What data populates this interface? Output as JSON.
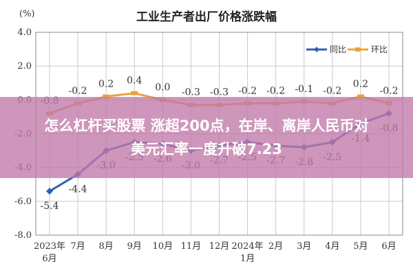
{
  "chart_data": {
    "type": "line",
    "title": "工业生产者出厂价格涨跌幅",
    "unit": "(%)",
    "ylim": [
      -8.0,
      4.0
    ],
    "yticks": [
      "4.0",
      "2.0",
      "0.0",
      "-2.0",
      "-4.0",
      "-6.0",
      "-8.0"
    ],
    "categories": [
      "2023年6月",
      "7月",
      "8月",
      "9月",
      "10月",
      "11月",
      "12月",
      "2024年1月",
      "2月",
      "3月",
      "4月",
      "5月",
      "6月"
    ],
    "x_tick_lines": [
      [
        "2023年",
        "6月"
      ],
      [
        "7月"
      ],
      [
        "8月"
      ],
      [
        "9月"
      ],
      [
        "10月"
      ],
      [
        "11月"
      ],
      [
        "12月"
      ],
      [
        "2024年",
        "1月"
      ],
      [
        "2月"
      ],
      [
        "3月"
      ],
      [
        "4月"
      ],
      [
        "5月"
      ],
      [
        "6月"
      ]
    ],
    "grid": true,
    "legend": "top-right",
    "series": [
      {
        "name": "同比",
        "color": "#2e5fb0",
        "values": [
          -5.4,
          -4.4,
          -3.0,
          -2.5,
          -2.6,
          -3.0,
          -2.7,
          -2.5,
          -2.7,
          -2.8,
          -2.5,
          -1.4,
          -0.8
        ],
        "labels": [
          "-5.4",
          "-4.4",
          "-3.0",
          "-2.5",
          "-2.6",
          "-3.0",
          "-2.7",
          "-2.5",
          "-2.7",
          "-2.8",
          "-2.5",
          "-1.4",
          "-0.8"
        ]
      },
      {
        "name": "环比",
        "color": "#e8a33c",
        "values": [
          -0.8,
          -0.2,
          0.2,
          0.4,
          0.0,
          -0.3,
          -0.3,
          -0.2,
          -0.2,
          -0.1,
          -0.2,
          0.2,
          -0.2
        ],
        "labels": [
          "-0.8",
          "-0.2",
          "0.2",
          "0.4",
          "0.0",
          "-0.3",
          "-0.3",
          "-0.2",
          "-0.2",
          "-0.1",
          "-0.2",
          "0.2",
          "-0.2"
        ]
      }
    ]
  },
  "banner": {
    "line1": "怎么杠杆买股票 涨超200点，在岸、离岸人民币对",
    "line2": "美元汇率一度升破7.23"
  },
  "colors": {
    "grid": "#c9c9c9",
    "axis": "#888888",
    "banner_bg": "#c078a8"
  }
}
